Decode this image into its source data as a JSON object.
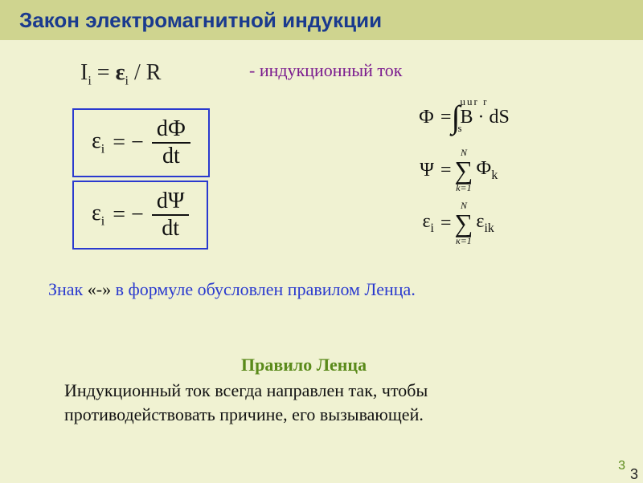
{
  "title": "Закон электромагнитной индукции",
  "current": {
    "lhs": "I",
    "lhs_sub": "i",
    "eq": " = ",
    "eps": "ε",
    "eps_sub": "i",
    "tail": " / R"
  },
  "induction_label": "- индукционный ток",
  "box_phi": {
    "eps": "ε",
    "eps_sub": "i",
    "eq": "= −",
    "num": "dФ",
    "den": "dt"
  },
  "box_psi": {
    "eps": "ε",
    "eps_sub": "i",
    "eq": "= −",
    "num": "dΨ",
    "den": "dt"
  },
  "eq_flux": {
    "lhs": "Ф",
    "eq": "=",
    "int_sub": "s",
    "B_accent": "uur   r",
    "body": "B · dS"
  },
  "eq_psi": {
    "lhs": "Ψ",
    "eq": "=",
    "sum_top": "N",
    "sum_bot": "k=1",
    "term": "Ф",
    "term_sub": "k"
  },
  "eq_eps": {
    "lhs": "ε",
    "lhs_sub": "i",
    "eq": "=",
    "sum_top": "N",
    "sum_bot": "к=1",
    "term": "ε",
    "term_sub": "ik"
  },
  "lenz_note": {
    "pre": "Знак ",
    "sign": "«-» ",
    "post": "в формуле обусловлен правилом Ленца."
  },
  "rule_title": "Правило Ленца",
  "rule_body": "Индукционный ток всегда направлен так, чтобы противодействовать причине, его вызывающей.",
  "page_number_a": "3",
  "page_number_b": "3",
  "colors": {
    "bg": "#f0f2d2",
    "titlebar": "#cfd48f",
    "title": "#1a3a8e",
    "purple": "#7a1a8e",
    "box_border": "#2a3acf",
    "green": "#5a8a1a",
    "text": "#111111"
  },
  "fonts": {
    "title_family": "Arial",
    "title_size_pt": 20,
    "body_family": "Times New Roman",
    "formula_size_pt": 21,
    "note_size_pt": 17
  }
}
